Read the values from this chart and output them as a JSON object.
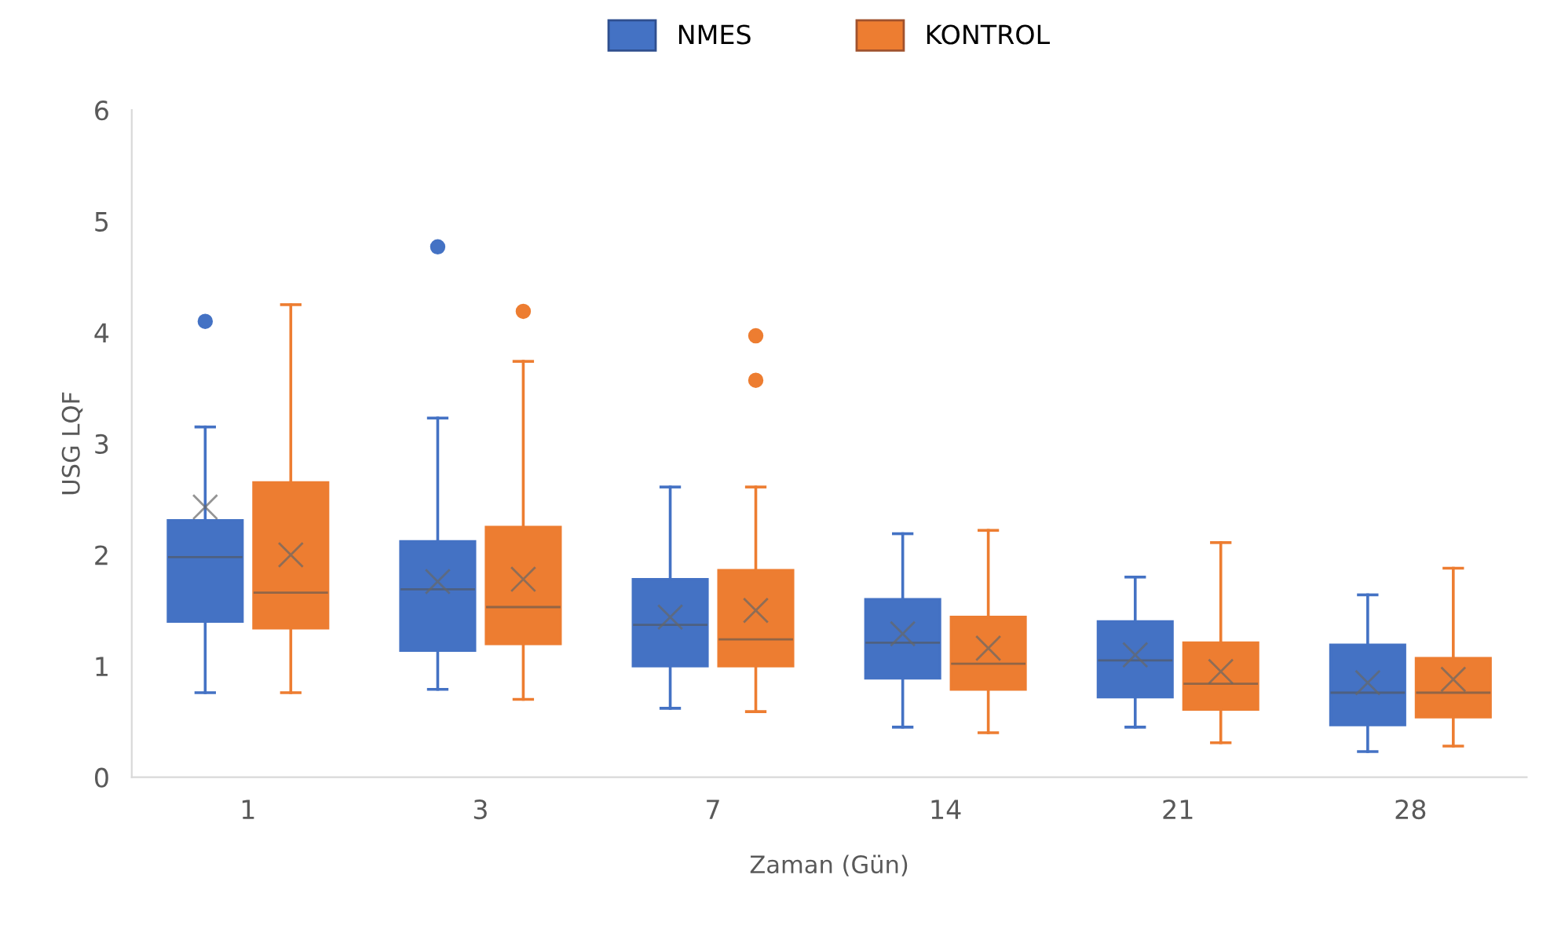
{
  "chart_data": {
    "type": "box",
    "xlabel": "Zaman (Gün)",
    "ylabel": "USG LQF",
    "categories": [
      "1",
      "3",
      "7",
      "14",
      "21",
      "28"
    ],
    "ylim": [
      0,
      6
    ],
    "yticks": [
      0,
      1,
      2,
      3,
      4,
      5,
      6
    ],
    "grid": false,
    "legend": "top",
    "series": [
      {
        "name": "NMES",
        "color": "#4472c4",
        "boxes": [
          {
            "low": 0.76,
            "q1": 1.4,
            "median": 1.98,
            "q3": 2.31,
            "high": 3.15,
            "mean": 2.43,
            "outliers": [
              4.1
            ]
          },
          {
            "low": 0.79,
            "q1": 1.14,
            "median": 1.69,
            "q3": 2.12,
            "high": 3.23,
            "mean": 1.76,
            "outliers": [
              4.77
            ]
          },
          {
            "low": 0.62,
            "q1": 1.0,
            "median": 1.37,
            "q3": 1.78,
            "high": 2.61,
            "mean": 1.44
          },
          {
            "low": 0.45,
            "q1": 0.89,
            "median": 1.21,
            "q3": 1.6,
            "high": 2.19,
            "mean": 1.29
          },
          {
            "low": 0.45,
            "q1": 0.72,
            "median": 1.05,
            "q3": 1.4,
            "high": 1.8,
            "mean": 1.1
          },
          {
            "low": 0.23,
            "q1": 0.47,
            "median": 0.76,
            "q3": 1.19,
            "high": 1.64,
            "mean": 0.85
          }
        ]
      },
      {
        "name": "KONTROL",
        "color": "#ed7d31",
        "boxes": [
          {
            "low": 0.76,
            "q1": 1.34,
            "median": 1.66,
            "q3": 2.65,
            "high": 4.25,
            "mean": 2.0
          },
          {
            "low": 0.7,
            "q1": 1.2,
            "median": 1.53,
            "q3": 2.25,
            "high": 3.74,
            "mean": 1.78,
            "outliers": [
              4.19
            ]
          },
          {
            "low": 0.59,
            "q1": 1.0,
            "median": 1.24,
            "q3": 1.86,
            "high": 2.61,
            "mean": 1.5,
            "outliers": [
              3.97,
              3.57
            ]
          },
          {
            "low": 0.4,
            "q1": 0.79,
            "median": 1.02,
            "q3": 1.44,
            "high": 2.22,
            "mean": 1.16
          },
          {
            "low": 0.31,
            "q1": 0.61,
            "median": 0.84,
            "q3": 1.21,
            "high": 2.11,
            "mean": 0.95
          },
          {
            "low": 0.28,
            "q1": 0.54,
            "median": 0.76,
            "q3": 1.07,
            "high": 1.88,
            "mean": 0.88
          }
        ]
      }
    ]
  }
}
